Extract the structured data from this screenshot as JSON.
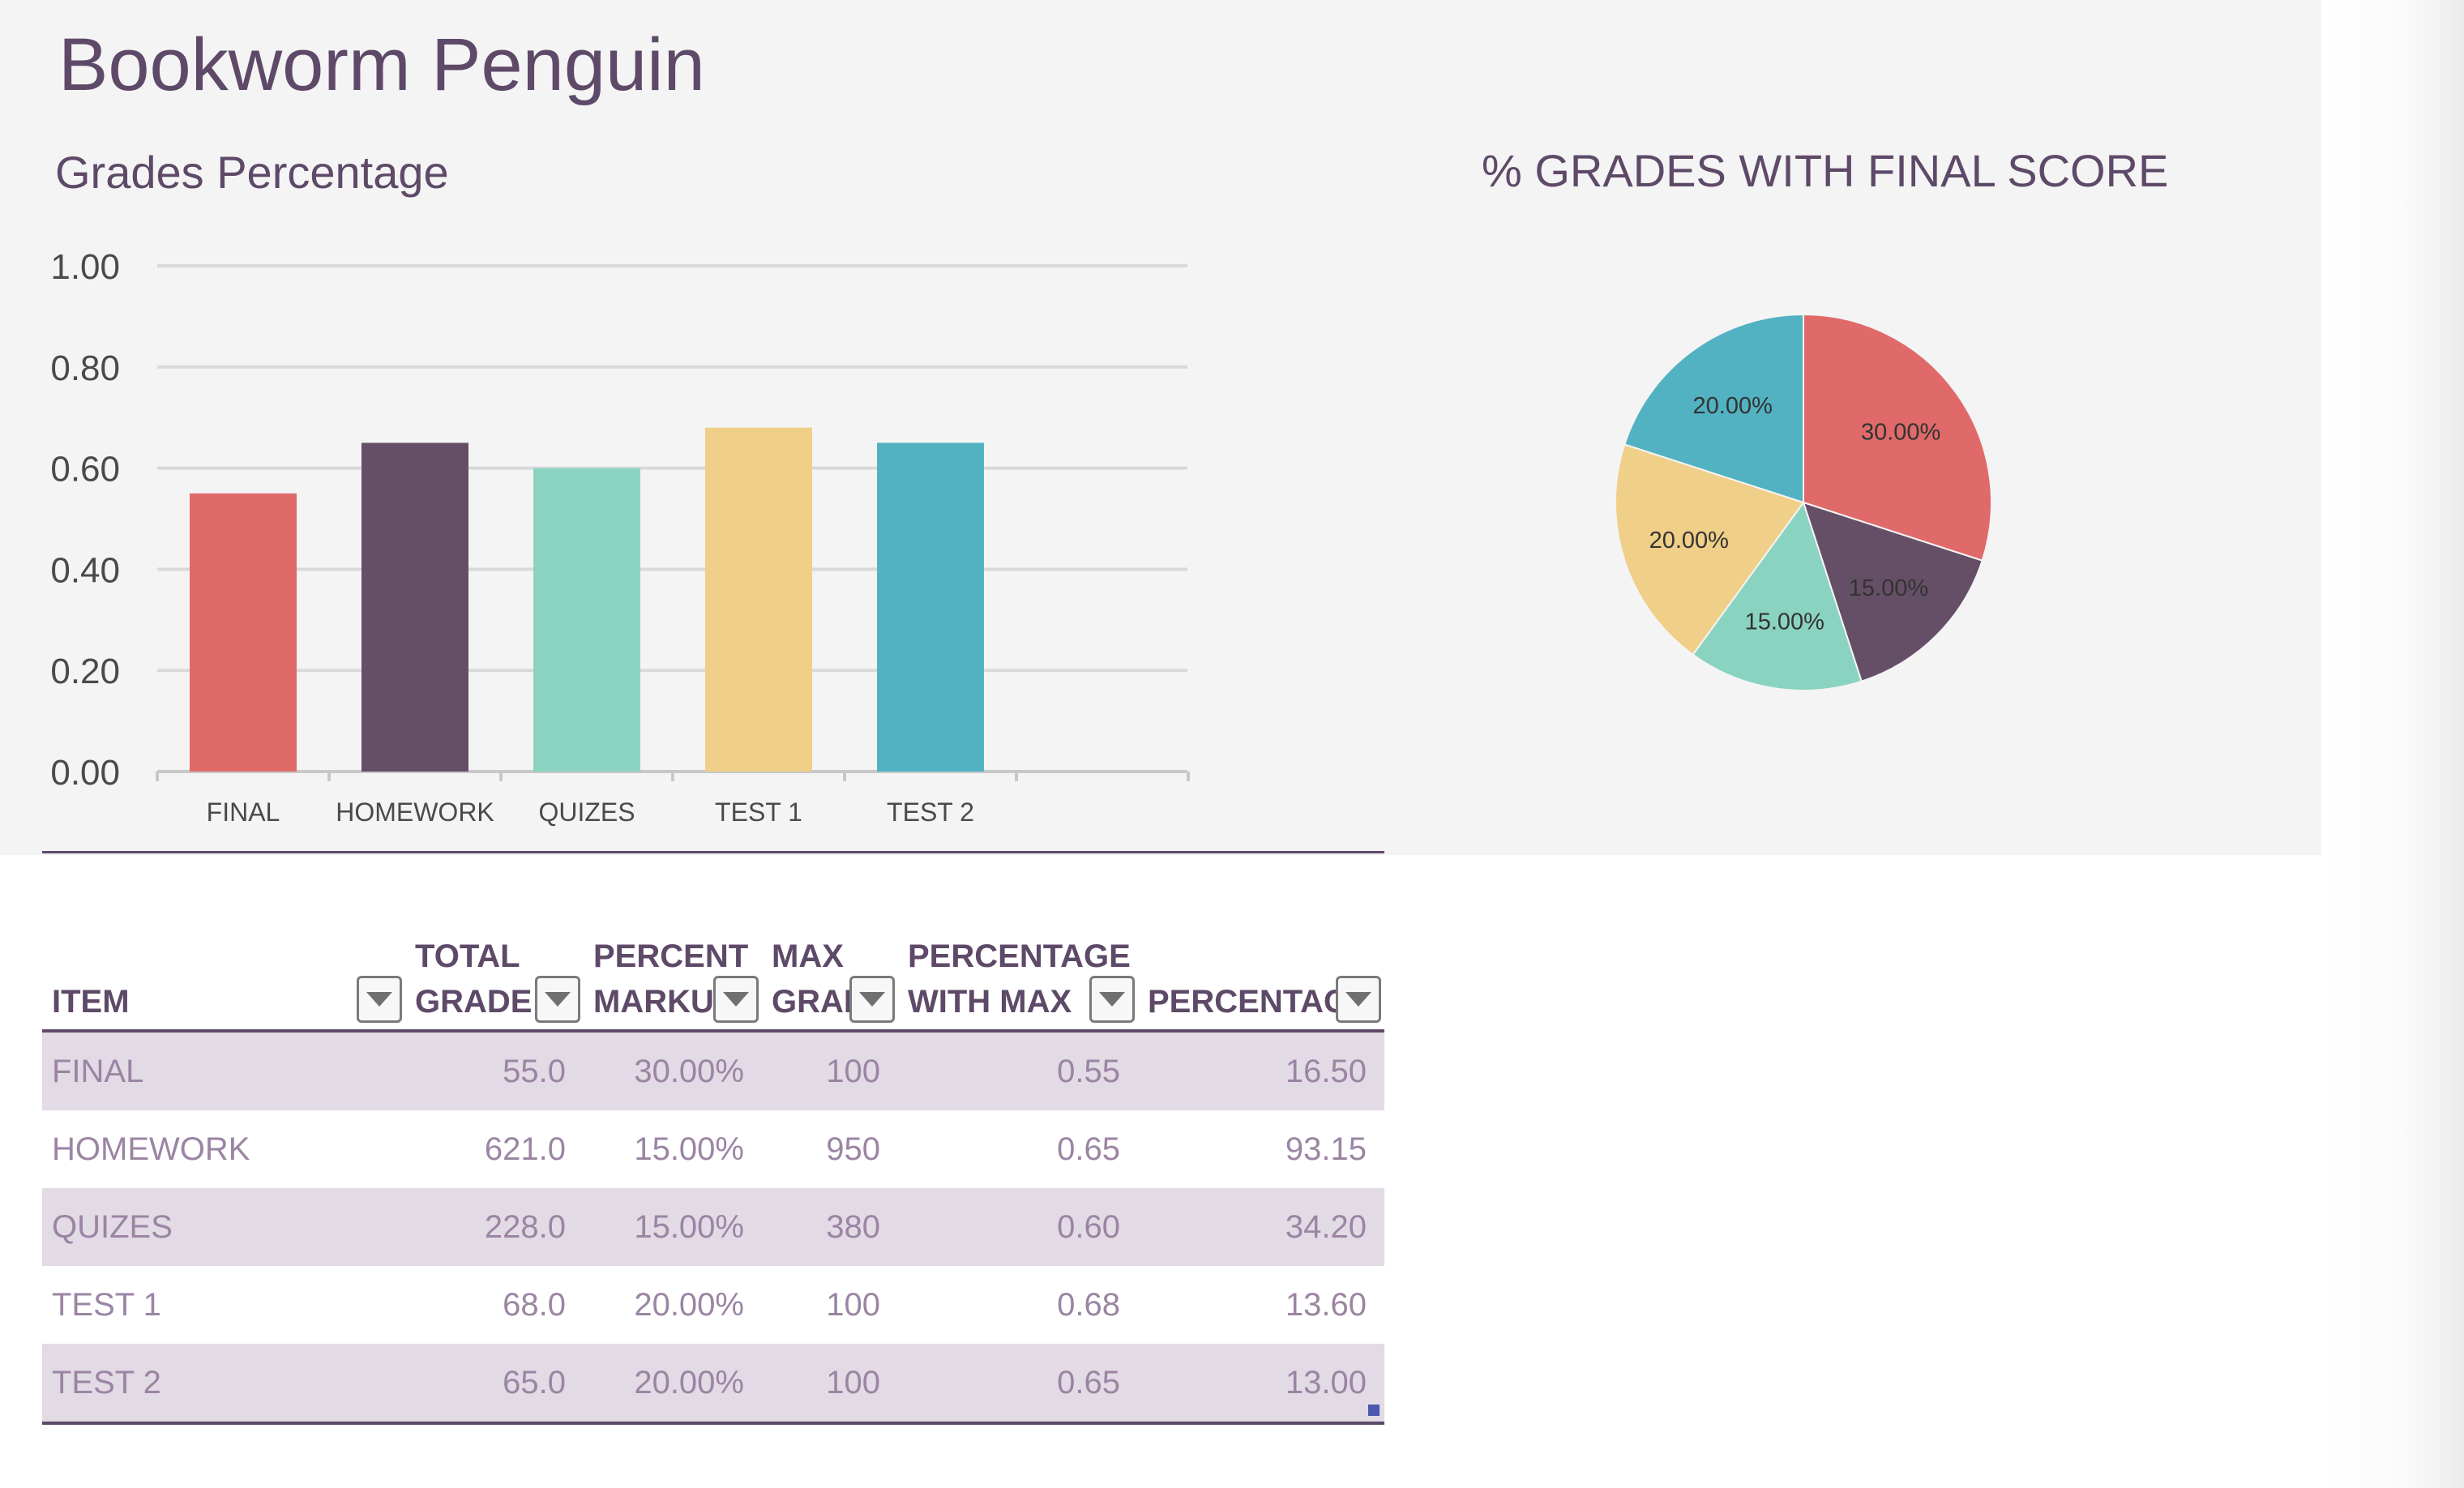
{
  "page_title": "Bookworm Penguin",
  "colors": {
    "final": "#e06a6a",
    "homework": "#654f66",
    "quizes": "#8ad3c1",
    "test1": "#f0cf88",
    "test2": "#52b2c1",
    "text_purple": "#5e4a68",
    "band": "#e2dae5"
  },
  "chart_data": [
    {
      "type": "bar",
      "title": "Grades Percentage",
      "categories": [
        "FINAL",
        "HOMEWORK",
        "QUIZES",
        "TEST 1",
        "TEST 2"
      ],
      "values": [
        0.55,
        0.65,
        0.6,
        0.68,
        0.65
      ],
      "ylim": [
        0,
        1
      ],
      "y_ticks": [
        "0.00",
        "0.20",
        "0.40",
        "0.60",
        "0.80",
        "1.00"
      ],
      "grid": true,
      "legend": "none"
    },
    {
      "type": "pie",
      "title": "% GRADES WITH FINAL SCORE",
      "categories": [
        "FINAL",
        "HOMEWORK",
        "QUIZES",
        "TEST 1",
        "TEST 2"
      ],
      "values": [
        30,
        15,
        15,
        20,
        20
      ],
      "data_labels": [
        "30.00%",
        "15.00%",
        "15.00%",
        "20.00%",
        "20.00%"
      ],
      "legend": "none"
    }
  ],
  "table": {
    "headers": [
      {
        "line1": "",
        "line2": "ITEM"
      },
      {
        "line1": "TOTAL",
        "line2": "GRADE"
      },
      {
        "line1": "PERCENT",
        "line2": "MARKU"
      },
      {
        "line1": "MAX",
        "line2": "GRAI"
      },
      {
        "line1": "PERCENTAGE",
        "line2": "WITH MAX"
      },
      {
        "line1": "",
        "line2": "PERCENTAG"
      }
    ],
    "rows": [
      [
        "FINAL",
        "55.0",
        "30.00%",
        "100",
        "0.55",
        "16.50"
      ],
      [
        "HOMEWORK",
        "621.0",
        "15.00%",
        "950",
        "0.65",
        "93.15"
      ],
      [
        "QUIZES",
        "228.0",
        "15.00%",
        "380",
        "0.60",
        "34.20"
      ],
      [
        "TEST 1",
        "68.0",
        "20.00%",
        "100",
        "0.68",
        "13.60"
      ],
      [
        "TEST 2",
        "65.0",
        "20.00%",
        "100",
        "0.65",
        "13.00"
      ]
    ]
  }
}
